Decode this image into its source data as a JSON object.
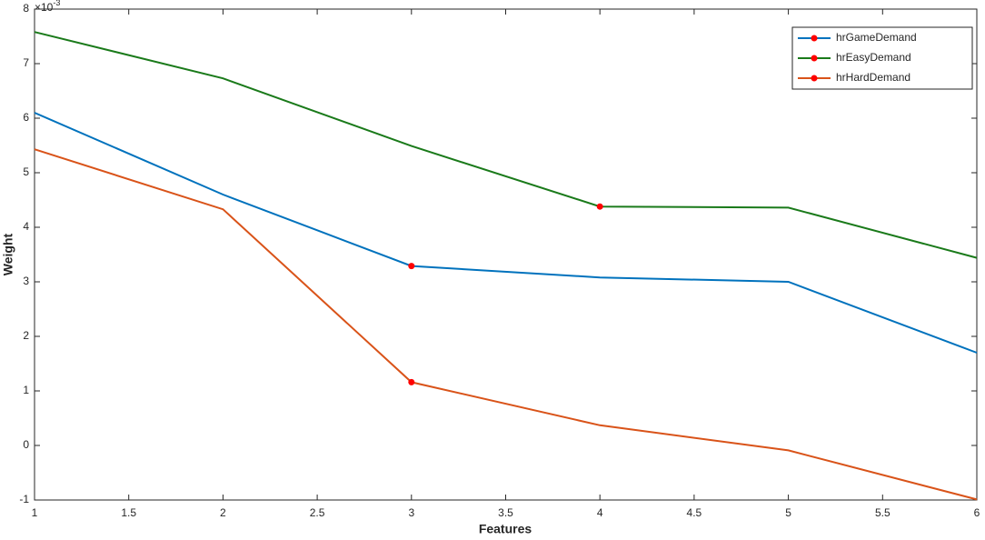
{
  "chart_data": {
    "type": "line",
    "x_label": "Features",
    "y_label": "Weight",
    "y_multiplier": {
      "base": "×10",
      "exponent": "-3"
    },
    "x": [
      1,
      2,
      3,
      4,
      5,
      6
    ],
    "series": [
      {
        "name": "hrGameDemand",
        "color": "#0072bd",
        "values": [
          6.1,
          4.6,
          3.29,
          3.08,
          3.0,
          1.7
        ],
        "marker_indices": [
          2
        ]
      },
      {
        "name": "hrEasyDemand",
        "color": "#1a7a1a",
        "values": [
          7.58,
          6.73,
          5.49,
          4.38,
          4.36,
          3.44
        ],
        "marker_indices": [
          3
        ]
      },
      {
        "name": "hrHardDemand",
        "color": "#d95319",
        "values": [
          5.43,
          4.33,
          1.16,
          0.37,
          -0.09,
          -0.99
        ],
        "marker_indices": [
          2
        ]
      }
    ],
    "marker_color": "#ff0000",
    "xlim": [
      1,
      6
    ],
    "xticks": [
      1,
      1.5,
      2,
      2.5,
      3,
      3.5,
      4,
      4.5,
      5,
      5.5,
      6
    ],
    "ylim": [
      -1,
      8
    ],
    "yticks": [
      -1,
      0,
      1,
      2,
      3,
      4,
      5,
      6,
      7,
      8
    ],
    "legend": "top-right"
  }
}
